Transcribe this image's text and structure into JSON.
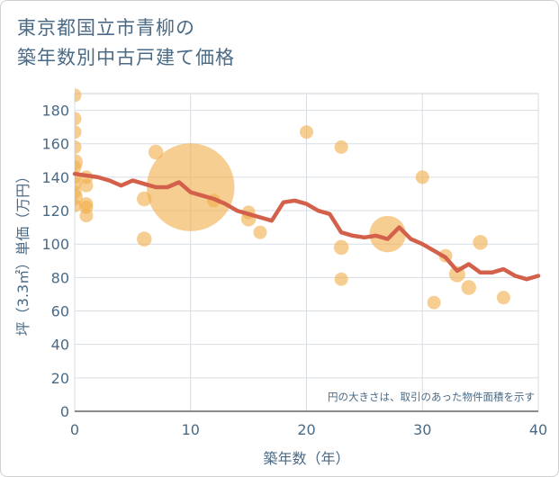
{
  "chart_data": {
    "type": "scatter",
    "title_lines": [
      "東京都国立市青柳の",
      "築年数別中古戸建て価格"
    ],
    "xlabel": "築年数（年）",
    "ylabel": "坪（3.3㎡）単価（万円）",
    "xlim": [
      0,
      40
    ],
    "ylim": [
      0,
      190
    ],
    "xticks": [
      0,
      10,
      20,
      30,
      40
    ],
    "yticks": [
      0,
      20,
      40,
      60,
      80,
      100,
      120,
      140,
      160,
      180
    ],
    "grid": true,
    "annotation": "円の大きさは、取引のあった物件面積を示す",
    "colors": {
      "bubble": "#f2b04e",
      "line": "#d2604a",
      "text": "#4a6a86",
      "grid": "#d7dde3"
    },
    "bubbles": [
      {
        "x": 0,
        "y": 189,
        "size": 1
      },
      {
        "x": 0,
        "y": 175,
        "size": 1
      },
      {
        "x": 0,
        "y": 167,
        "size": 1
      },
      {
        "x": 0,
        "y": 158,
        "size": 1
      },
      {
        "x": 0,
        "y": 149,
        "size": 1.2
      },
      {
        "x": 0,
        "y": 146,
        "size": 1
      },
      {
        "x": 0,
        "y": 140,
        "size": 1
      },
      {
        "x": 0,
        "y": 136,
        "size": 1
      },
      {
        "x": 0,
        "y": 131,
        "size": 1
      },
      {
        "x": 0,
        "y": 128,
        "size": 1.2
      },
      {
        "x": 0,
        "y": 123,
        "size": 1
      },
      {
        "x": 1,
        "y": 140,
        "size": 1
      },
      {
        "x": 1,
        "y": 135,
        "size": 1
      },
      {
        "x": 1,
        "y": 124,
        "size": 1
      },
      {
        "x": 1,
        "y": 122,
        "size": 1
      },
      {
        "x": 1,
        "y": 117,
        "size": 1
      },
      {
        "x": 6,
        "y": 127,
        "size": 1.1
      },
      {
        "x": 6,
        "y": 103,
        "size": 1.1
      },
      {
        "x": 7,
        "y": 155,
        "size": 1.1
      },
      {
        "x": 10,
        "y": 134,
        "size": 6.5
      },
      {
        "x": 12,
        "y": 126,
        "size": 1
      },
      {
        "x": 15,
        "y": 119,
        "size": 1
      },
      {
        "x": 15,
        "y": 115,
        "size": 1.1
      },
      {
        "x": 16,
        "y": 107,
        "size": 1
      },
      {
        "x": 20,
        "y": 167,
        "size": 1
      },
      {
        "x": 23,
        "y": 158,
        "size": 1
      },
      {
        "x": 23,
        "y": 98,
        "size": 1.1
      },
      {
        "x": 23,
        "y": 79,
        "size": 1
      },
      {
        "x": 27,
        "y": 106,
        "size": 2.7
      },
      {
        "x": 30,
        "y": 140,
        "size": 1
      },
      {
        "x": 31,
        "y": 65,
        "size": 1
      },
      {
        "x": 32,
        "y": 93,
        "size": 1
      },
      {
        "x": 33,
        "y": 82,
        "size": 1.2
      },
      {
        "x": 34,
        "y": 74,
        "size": 1.1
      },
      {
        "x": 35,
        "y": 101,
        "size": 1.1
      },
      {
        "x": 37,
        "y": 68,
        "size": 1
      }
    ],
    "line": {
      "x": [
        0,
        1,
        2,
        3,
        4,
        5,
        6,
        7,
        8,
        9,
        10,
        11,
        12,
        13,
        14,
        15,
        16,
        17,
        18,
        19,
        20,
        21,
        22,
        23,
        24,
        25,
        26,
        27,
        28,
        29,
        30,
        31,
        32,
        33,
        34,
        35,
        36,
        37,
        38,
        39,
        40
      ],
      "y": [
        142,
        141,
        140,
        138,
        135,
        138,
        136,
        134,
        134,
        137,
        131,
        129,
        127,
        124,
        120,
        118,
        116,
        114,
        125,
        126,
        124,
        120,
        118,
        107,
        105,
        104,
        105,
        103,
        110,
        103,
        100,
        96,
        92,
        84,
        88,
        83,
        83,
        85,
        81,
        79,
        81
      ]
    }
  }
}
